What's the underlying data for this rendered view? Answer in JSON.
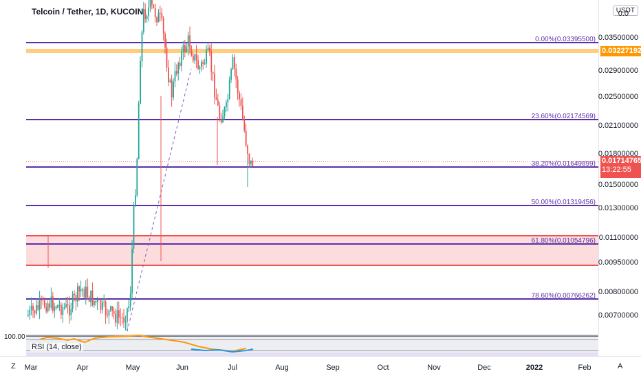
{
  "header": {
    "title": "Telcoin / Tether, 1D, KUCOIN"
  },
  "price_scale": {
    "currency": "USDT",
    "top_partial": "0.0",
    "ticks": [
      "0.03500000",
      "0.02900000",
      "0.02500000",
      "0.02100000",
      "0.01800000",
      "0.01500000",
      "0.01300000",
      "0.01100000",
      "0.00950000",
      "0.00800000",
      "0.00700000"
    ],
    "orange_tag": "0.03227192",
    "current_price": "0.01714765",
    "countdown": "13:22:55",
    "orange_color": "#ff9800",
    "red_color": "#ef5350"
  },
  "fib_levels": [
    {
      "label": "0.00%(0.03395500)"
    },
    {
      "label": "23.60%(0.02174569)"
    },
    {
      "label": "38.20%(0.01649899)"
    },
    {
      "label": "50.00%(0.01319456)"
    },
    {
      "label": "61.80%(0.01054796)"
    },
    {
      "label": "78.60%(0.00766262)"
    }
  ],
  "fib_color": "#5b2fa8",
  "rsi": {
    "label": "RSI (14, close)",
    "left_value": "100.00"
  },
  "time_axis": {
    "labels": [
      "Mar",
      "Apr",
      "May",
      "Jun",
      "Jul",
      "Aug",
      "Sep",
      "Oct",
      "Nov",
      "Dec",
      "2022",
      "Feb"
    ],
    "left_button": "Z",
    "right_button": "A"
  },
  "chart_data": {
    "type": "candlestick",
    "symbol": "Telcoin / Tether",
    "interval": "1D",
    "exchange": "KUCOIN",
    "current_price": 0.01714765,
    "support_zone": [
      0.0093,
      0.0112
    ],
    "resistance_line": 0.03227192
  }
}
